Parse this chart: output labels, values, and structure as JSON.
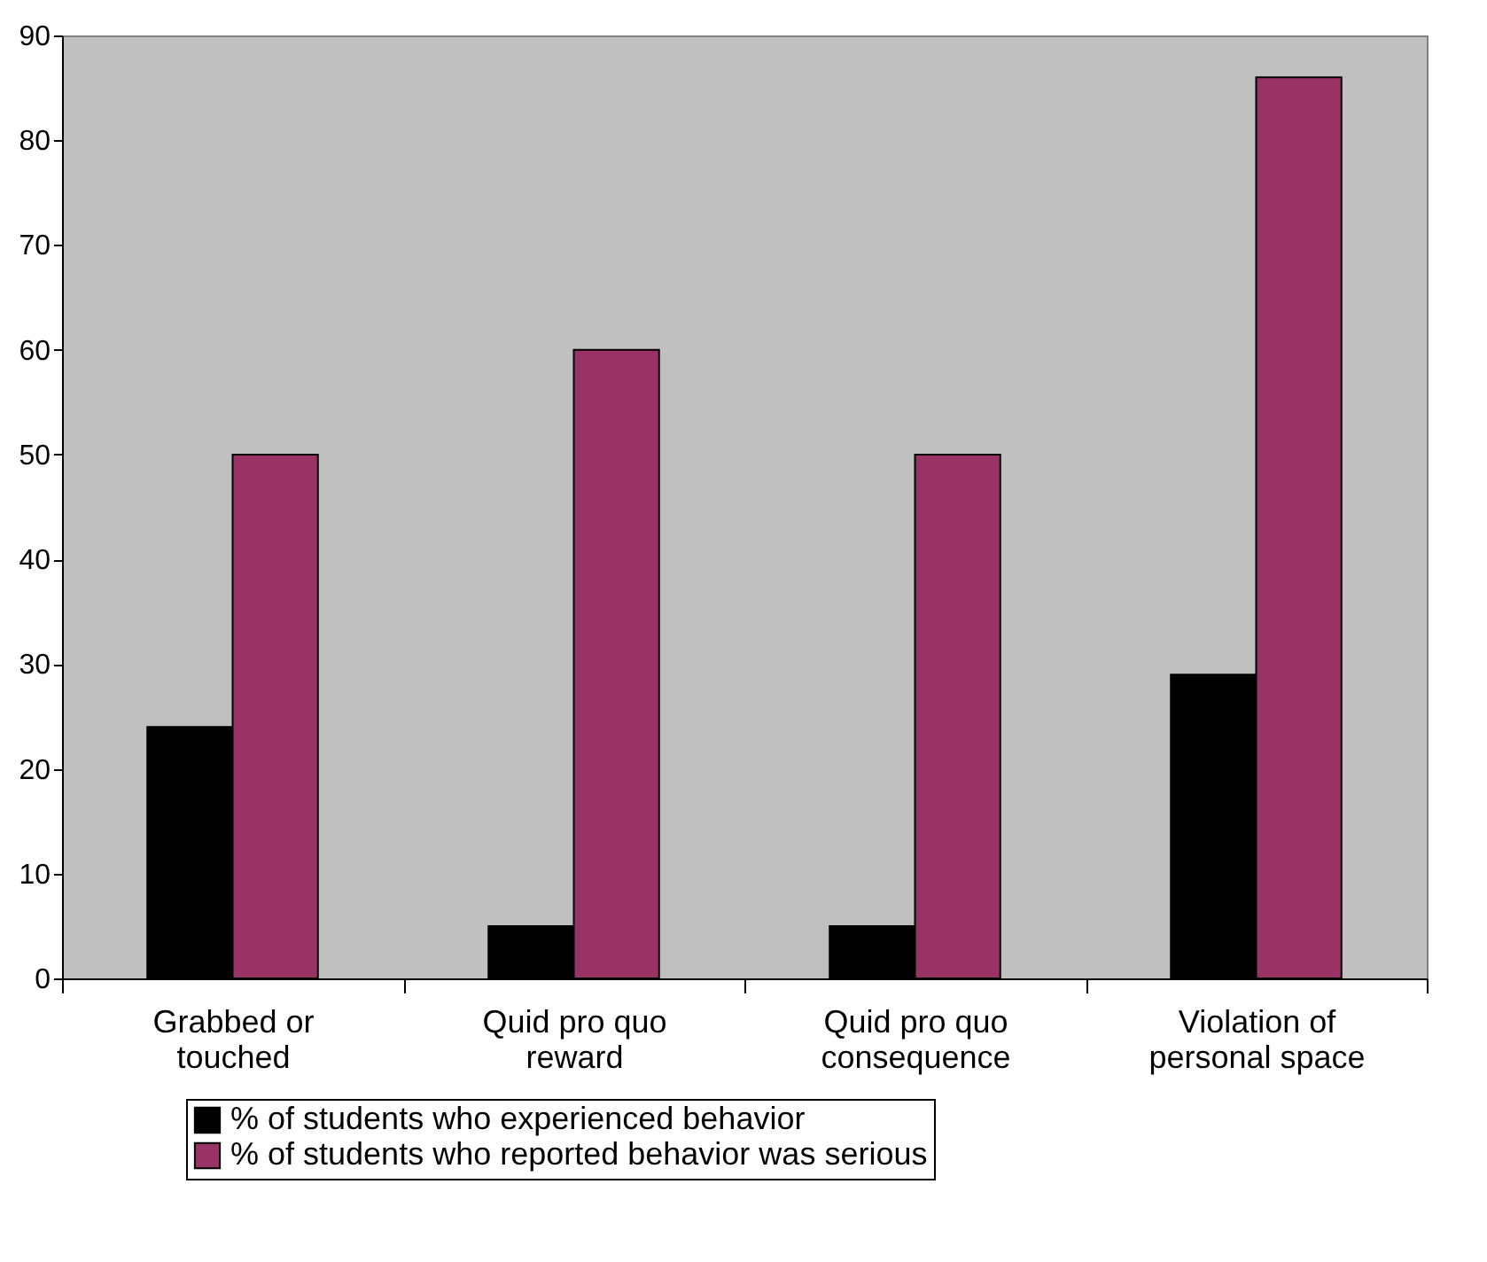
{
  "chart_data": {
    "type": "bar",
    "categories": [
      "Grabbed or\ntouched",
      "Quid pro quo\nreward",
      "Quid pro quo\nconsequence",
      "Violation of\npersonal space"
    ],
    "series": [
      {
        "name": "% of students who experienced behavior",
        "color": "#000000",
        "values": [
          24,
          5,
          5,
          29
        ]
      },
      {
        "name": "% of students who reported behavior was serious",
        "color": "#993366",
        "values": [
          50,
          60,
          50,
          86
        ]
      }
    ],
    "ylim": [
      0,
      90
    ],
    "yticks": [
      0,
      10,
      20,
      30,
      40,
      50,
      60,
      70,
      80,
      90
    ],
    "grid": false,
    "legend": "bottom"
  }
}
